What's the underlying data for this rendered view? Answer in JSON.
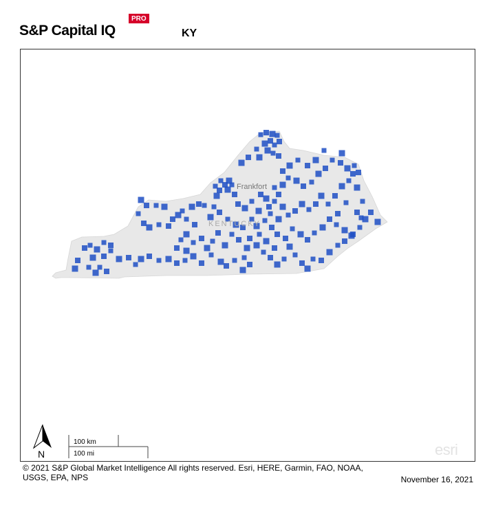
{
  "header": {
    "brand": "S&P Capital IQ",
    "badge": "PRO",
    "region_code": "KY"
  },
  "map": {
    "state_name": "KENTUCKY",
    "capital_label": "Frankfort",
    "state_fill_color": "#e8e8e8",
    "marker_color": "#1f4fc4",
    "north_label": "N",
    "scale_km": "100 km",
    "scale_mi": "100 mi",
    "attribution_logo": "esri"
  },
  "footer": {
    "copyright": "© 2021 S&P Global Market Intelligence All rights reserved. Esri, HERE, Garmin, FAO, NOAA, USGS, EPA, NPS",
    "date": "November 16, 2021"
  }
}
